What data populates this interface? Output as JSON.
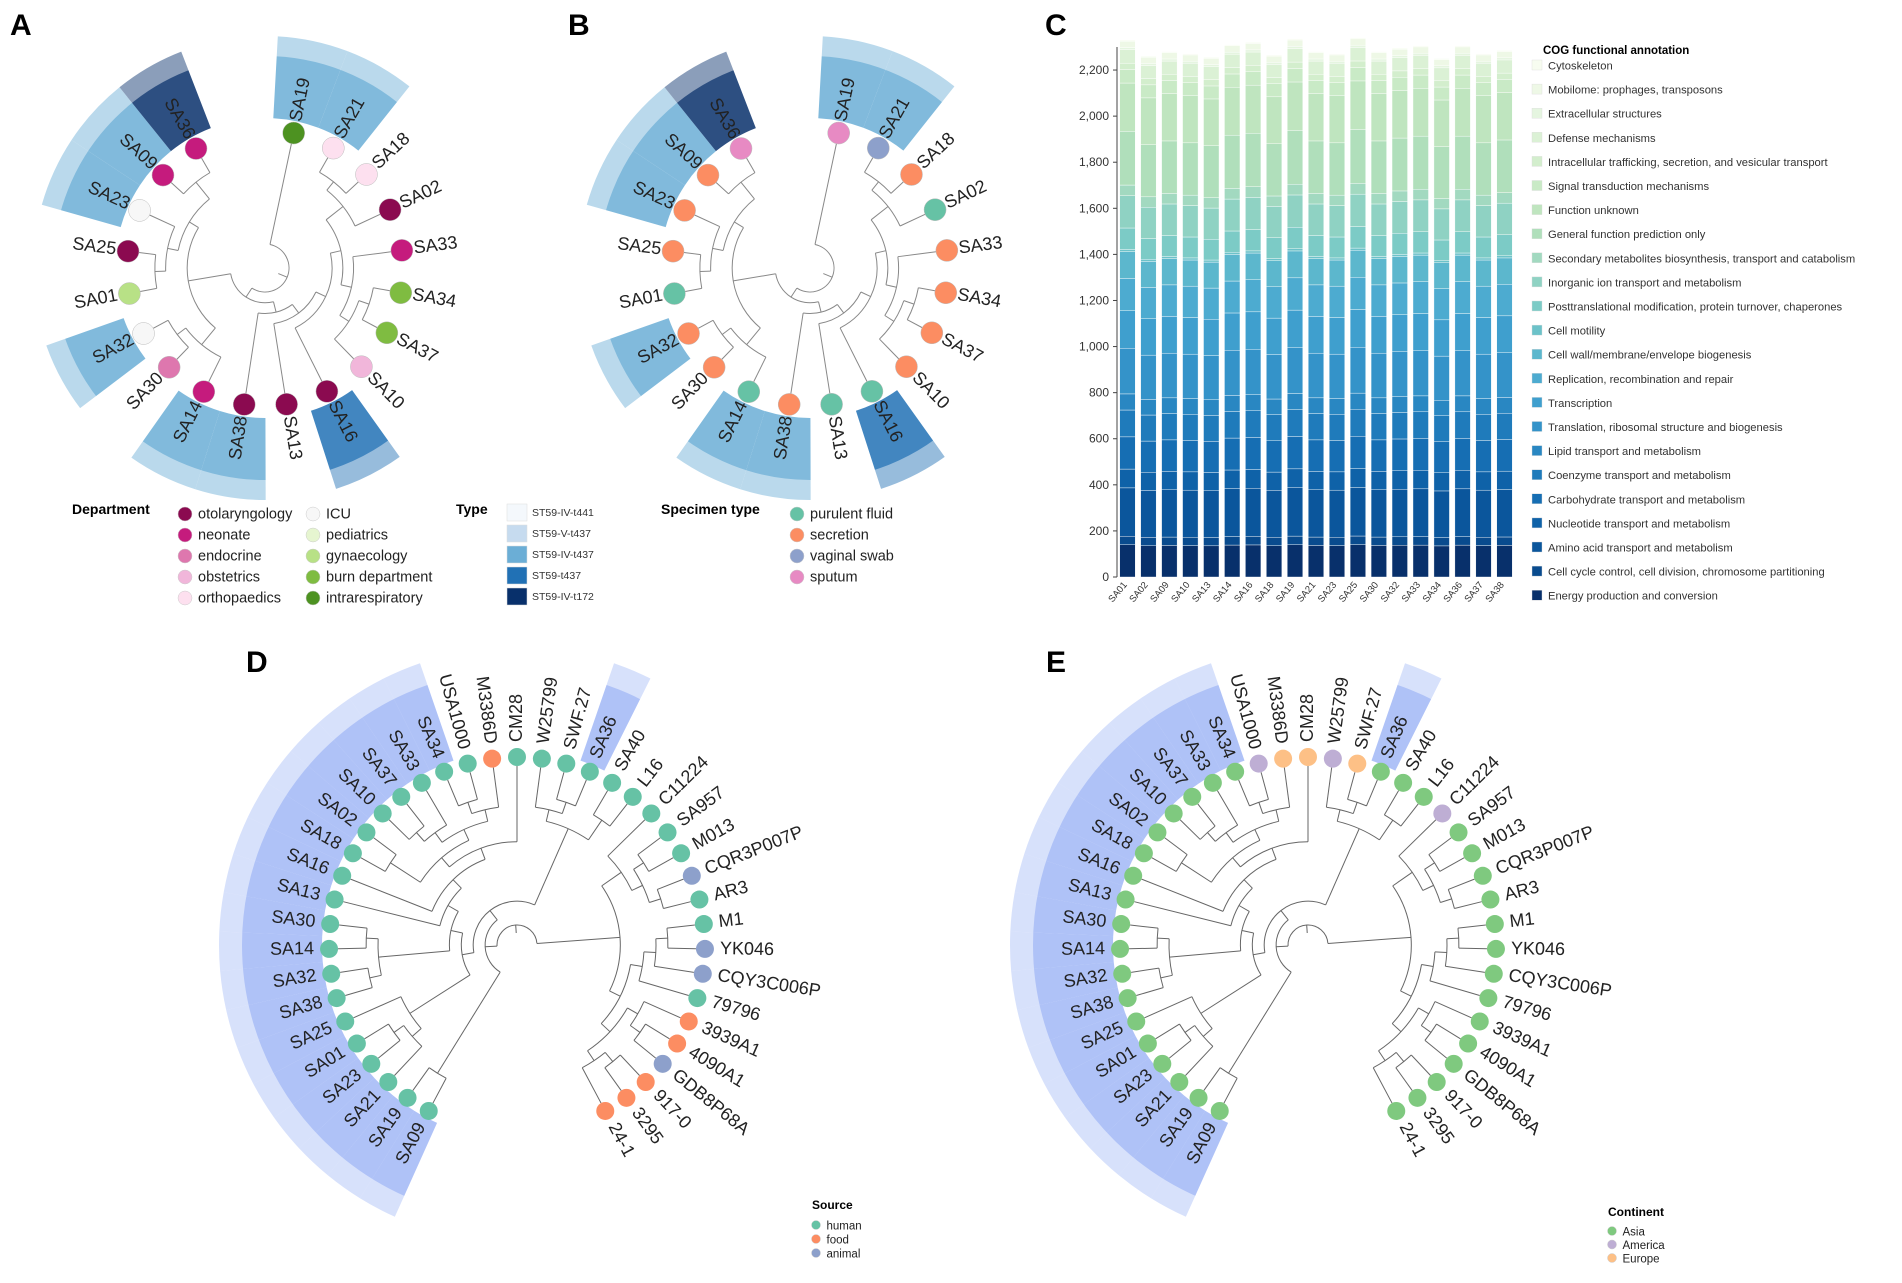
{
  "panels": {
    "A": {
      "letter": "A",
      "order": [
        "SA19",
        "SA21",
        "SA18",
        "SA02",
        "SA33",
        "SA34",
        "SA37",
        "SA10",
        "SA16",
        "SA13",
        "SA38",
        "SA14",
        "SA30",
        "SA32",
        "SA01",
        "SA25",
        "SA23",
        "SA09",
        "SA36"
      ],
      "tip_categories": [
        "intrarespiratory",
        "orthopaedics",
        "orthopaedics",
        "otolaryngology",
        "neonate",
        "burn department",
        "burn department",
        "obstetrics",
        "otolaryngology",
        "otolaryngology",
        "otolaryngology",
        "neonate",
        "endocrine",
        "ICU",
        "gynaecology",
        "otolaryngology",
        "ICU",
        "neonate",
        "neonate"
      ],
      "band_types": [
        "ST59-IV-t437",
        "ST59-IV-t437",
        "",
        "",
        "",
        "",
        "",
        "",
        "ST59-t437",
        "",
        "ST59-IV-t437",
        "ST59-IV-t437",
        "",
        "ST59-IV-t437",
        "",
        "",
        "ST59-IV-t437",
        "ST59-IV-t437",
        "ST59-IV-t172"
      ],
      "legend_department": {
        "title": "Department",
        "items": [
          {
            "label": "otolaryngology",
            "color": "#8b0a50"
          },
          {
            "label": "ICU",
            "color": "#f7f7f7"
          },
          {
            "label": "neonate",
            "color": "#c51b7d"
          },
          {
            "label": "pediatrics",
            "color": "#e6f5d0"
          },
          {
            "label": "endocrine",
            "color": "#de77ae"
          },
          {
            "label": "gynaecology",
            "color": "#b8e186"
          },
          {
            "label": "obstetrics",
            "color": "#f1b6da"
          },
          {
            "label": "burn department",
            "color": "#7fbc41"
          },
          {
            "label": "orthopaedics",
            "color": "#fde0ef"
          },
          {
            "label": "intrarespiratory",
            "color": "#4d9221"
          }
        ]
      },
      "legend_type": {
        "title": "Type",
        "items": [
          {
            "label": "ST59-IV-t441",
            "color": "#f4f8fc"
          },
          {
            "label": "ST59-V-t437",
            "color": "#c6dbef"
          },
          {
            "label": "ST59-IV-t437",
            "color": "#6baed6"
          },
          {
            "label": "ST59-t437",
            "color": "#2171b5"
          },
          {
            "label": "ST59-IV-t172",
            "color": "#08306b"
          }
        ]
      }
    },
    "B": {
      "letter": "B",
      "tip_categories": [
        "sputum",
        "vaginal swab",
        "secretion",
        "purulent fluid",
        "secretion",
        "secretion",
        "secretion",
        "secretion",
        "purulent fluid",
        "purulent fluid",
        "secretion",
        "purulent fluid",
        "secretion",
        "secretion",
        "purulent fluid",
        "secretion",
        "secretion",
        "secretion",
        "sputum"
      ],
      "legend_specimen": {
        "title": "Specimen type",
        "items": [
          {
            "label": "purulent fluid",
            "color": "#66c2a5"
          },
          {
            "label": "secretion",
            "color": "#fc8d62"
          },
          {
            "label": "vaginal swab",
            "color": "#8da0cb"
          },
          {
            "label": "sputum",
            "color": "#e78ac3"
          }
        ]
      }
    },
    "C": {
      "letter": "C"
    },
    "D": {
      "letter": "D",
      "tips": [
        "SA09",
        "SA19",
        "SA21",
        "SA23",
        "SA01",
        "SA25",
        "SA38",
        "SA32",
        "SA14",
        "SA30",
        "SA13",
        "SA16",
        "SA18",
        "SA02",
        "SA10",
        "SA37",
        "SA33",
        "SA34",
        "USA1000",
        "M3386D",
        "CM28",
        "W25799",
        "SWF.27",
        "SA36",
        "SA40",
        "L16",
        "C11224",
        "SA957",
        "M013",
        "CQR3P007P",
        "AR3",
        "M1",
        "YK046",
        "CQY3C006P",
        "79796",
        "3939A1",
        "4090A1",
        "GDB8P68A",
        "917-0",
        "3295",
        "24-1"
      ],
      "source": [
        "human",
        "human",
        "human",
        "human",
        "human",
        "human",
        "human",
        "human",
        "human",
        "human",
        "human",
        "human",
        "human",
        "human",
        "human",
        "human",
        "human",
        "human",
        "human",
        "food",
        "human",
        "human",
        "human",
        "human",
        "human",
        "human",
        "human",
        "human",
        "human",
        "animal",
        "human",
        "human",
        "animal",
        "animal",
        "human",
        "food",
        "food",
        "animal",
        "food",
        "food",
        "food"
      ],
      "highlight_tips": [
        "SA09",
        "SA19",
        "SA21",
        "SA23",
        "SA01",
        "SA25",
        "SA38",
        "SA32",
        "SA14",
        "SA30",
        "SA13",
        "SA16",
        "SA18",
        "SA02",
        "SA10",
        "SA37",
        "SA33",
        "SA34",
        "SA36"
      ],
      "legend": {
        "title": "Source",
        "items": [
          {
            "label": "human",
            "color": "#66c2a5"
          },
          {
            "label": "food",
            "color": "#fc8d62"
          },
          {
            "label": "animal",
            "color": "#8da0cb"
          }
        ]
      }
    },
    "E": {
      "letter": "E",
      "continent": [
        "Asia",
        "Asia",
        "Asia",
        "Asia",
        "Asia",
        "Asia",
        "Asia",
        "Asia",
        "Asia",
        "Asia",
        "Asia",
        "Asia",
        "Asia",
        "Asia",
        "Asia",
        "Asia",
        "Asia",
        "Asia",
        "America",
        "Europe",
        "Europe",
        "America",
        "Europe",
        "Asia",
        "Asia",
        "Asia",
        "America",
        "Asia",
        "Asia",
        "Asia",
        "Asia",
        "Asia",
        "Asia",
        "Asia",
        "Asia",
        "Asia",
        "Asia",
        "Asia",
        "Asia",
        "Asia",
        "Asia"
      ],
      "legend": {
        "title": "Continent",
        "items": [
          {
            "label": "Asia",
            "color": "#7fc97f"
          },
          {
            "label": "America",
            "color": "#beaed4"
          },
          {
            "label": "Europe",
            "color": "#fdc086"
          }
        ]
      }
    }
  },
  "chart_data": {
    "type": "bar",
    "stacked": true,
    "categories": [
      "SA01",
      "SA02",
      "SA09",
      "SA10",
      "SA13",
      "SA14",
      "SA16",
      "SA18",
      "SA19",
      "SA21",
      "SA23",
      "SA25",
      "SA30",
      "SA32",
      "SA33",
      "SA34",
      "SA36",
      "SA37",
      "SA38"
    ],
    "totals": [
      2330,
      2260,
      2280,
      2270,
      2255,
      2310,
      2320,
      2265,
      2335,
      2280,
      2270,
      2340,
      2280,
      2295,
      2305,
      2250,
      2305,
      2270,
      2285
    ],
    "ylim": [
      0,
      2300
    ],
    "yticks": [
      0,
      200,
      400,
      600,
      800,
      "1,000",
      "1,200",
      "1,400",
      "1,600",
      "1,800",
      "2,000",
      "2,200"
    ],
    "ytick_values": [
      0,
      200,
      400,
      600,
      800,
      1000,
      1200,
      1400,
      1600,
      1800,
      2000,
      2200
    ],
    "legend_title": "COG functional annotation",
    "series": [
      {
        "name": "Cytoskeleton",
        "color": "#f7fcf0",
        "share": 0.002
      },
      {
        "name": "Mobilome: prophages, transposons",
        "color": "#eef8e6",
        "share": 0.012
      },
      {
        "name": "Extracellular structures",
        "color": "#e5f5e0",
        "share": 0.004
      },
      {
        "name": "Defense mechanisms",
        "color": "#dbf1d5",
        "share": 0.025
      },
      {
        "name": "Intracellular trafficking, secretion, and vesicular transport",
        "color": "#d3eecd",
        "share": 0.012
      },
      {
        "name": "Signal transduction mechanisms",
        "color": "#c9eac6",
        "share": 0.025
      },
      {
        "name": "Function unknown",
        "color": "#bfe5bf",
        "share": 0.09
      },
      {
        "name": "General function prediction only",
        "color": "#b0dfbb",
        "share": 0.1
      },
      {
        "name": "Secondary metabolites biosynthesis, transport and catabolism",
        "color": "#a2d9c0",
        "share": 0.02
      },
      {
        "name": "Inorganic ion transport and metabolism",
        "color": "#8fd2c3",
        "share": 0.06
      },
      {
        "name": "Posttranslational modification, protein turnover, chaperones",
        "color": "#7ccbc6",
        "share": 0.04
      },
      {
        "name": "Cell motility",
        "color": "#6cc2c9",
        "share": 0.004
      },
      {
        "name": "Cell wall/membrane/envelope biogenesis",
        "color": "#5cb7cd",
        "share": 0.05
      },
      {
        "name": "Replication, recombination and repair",
        "color": "#4dabd0",
        "share": 0.06
      },
      {
        "name": "Transcription",
        "color": "#3f9fce",
        "share": 0.07
      },
      {
        "name": "Translation, ribosomal structure and biogenesis",
        "color": "#3493c9",
        "share": 0.085
      },
      {
        "name": "Lipid transport and metabolism",
        "color": "#2987c2",
        "share": 0.03
      },
      {
        "name": "Coenzyme transport and metabolism",
        "color": "#1f7bbb",
        "share": 0.05
      },
      {
        "name": "Carbohydrate transport and metabolism",
        "color": "#166eb3",
        "share": 0.06
      },
      {
        "name": "Nucleotide transport and metabolism",
        "color": "#0f62a8",
        "share": 0.035
      },
      {
        "name": "Amino acid transport and metabolism",
        "color": "#0b569c",
        "share": 0.09
      },
      {
        "name": "Cell cycle control, cell division, chromosome partitioning",
        "color": "#094b8e",
        "share": 0.016
      },
      {
        "name": "Energy production and conversion",
        "color": "#08306b",
        "share": 0.06
      }
    ]
  }
}
